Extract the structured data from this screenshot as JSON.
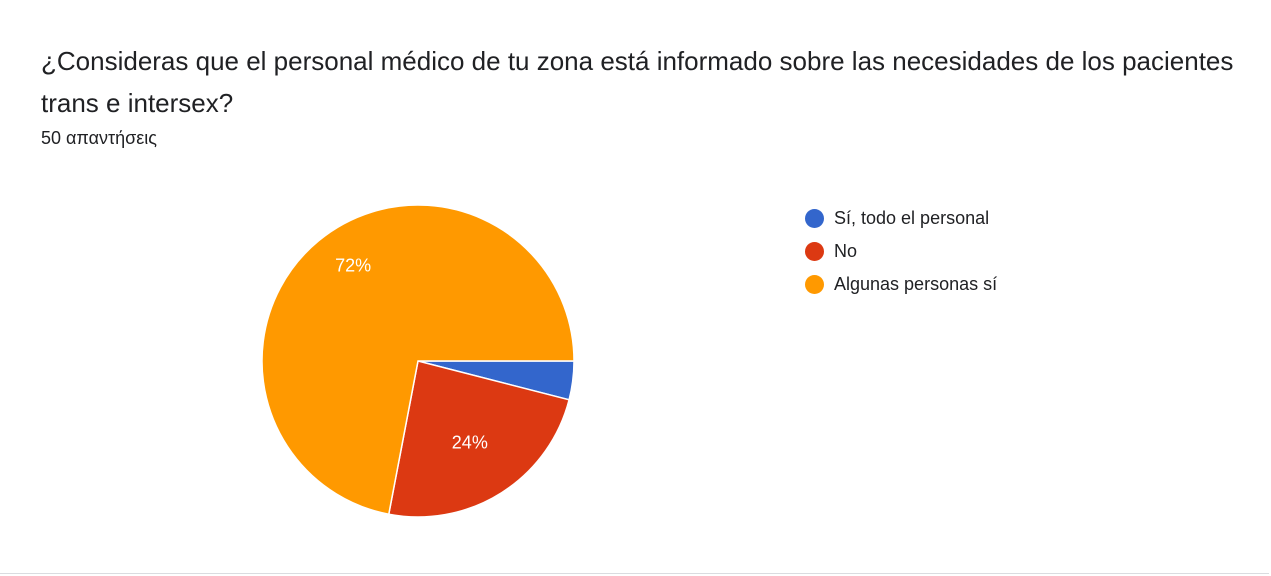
{
  "question": {
    "title": "¿Consideras que el personal médico de tu zona está informado sobre las necesidades de los pacientes trans e intersex?",
    "responses": "50 απαντήσεις"
  },
  "chart_data": {
    "type": "pie",
    "slices": [
      {
        "label": "Sí, todo el personal",
        "value": 4,
        "color": "#3366cc",
        "data_label": ""
      },
      {
        "label": "No",
        "value": 24,
        "color": "#dc3912",
        "data_label": "24%"
      },
      {
        "label": "Algunas personas sí",
        "value": 72,
        "color": "#ff9900",
        "data_label": "72%"
      }
    ],
    "legend_position": "right"
  }
}
